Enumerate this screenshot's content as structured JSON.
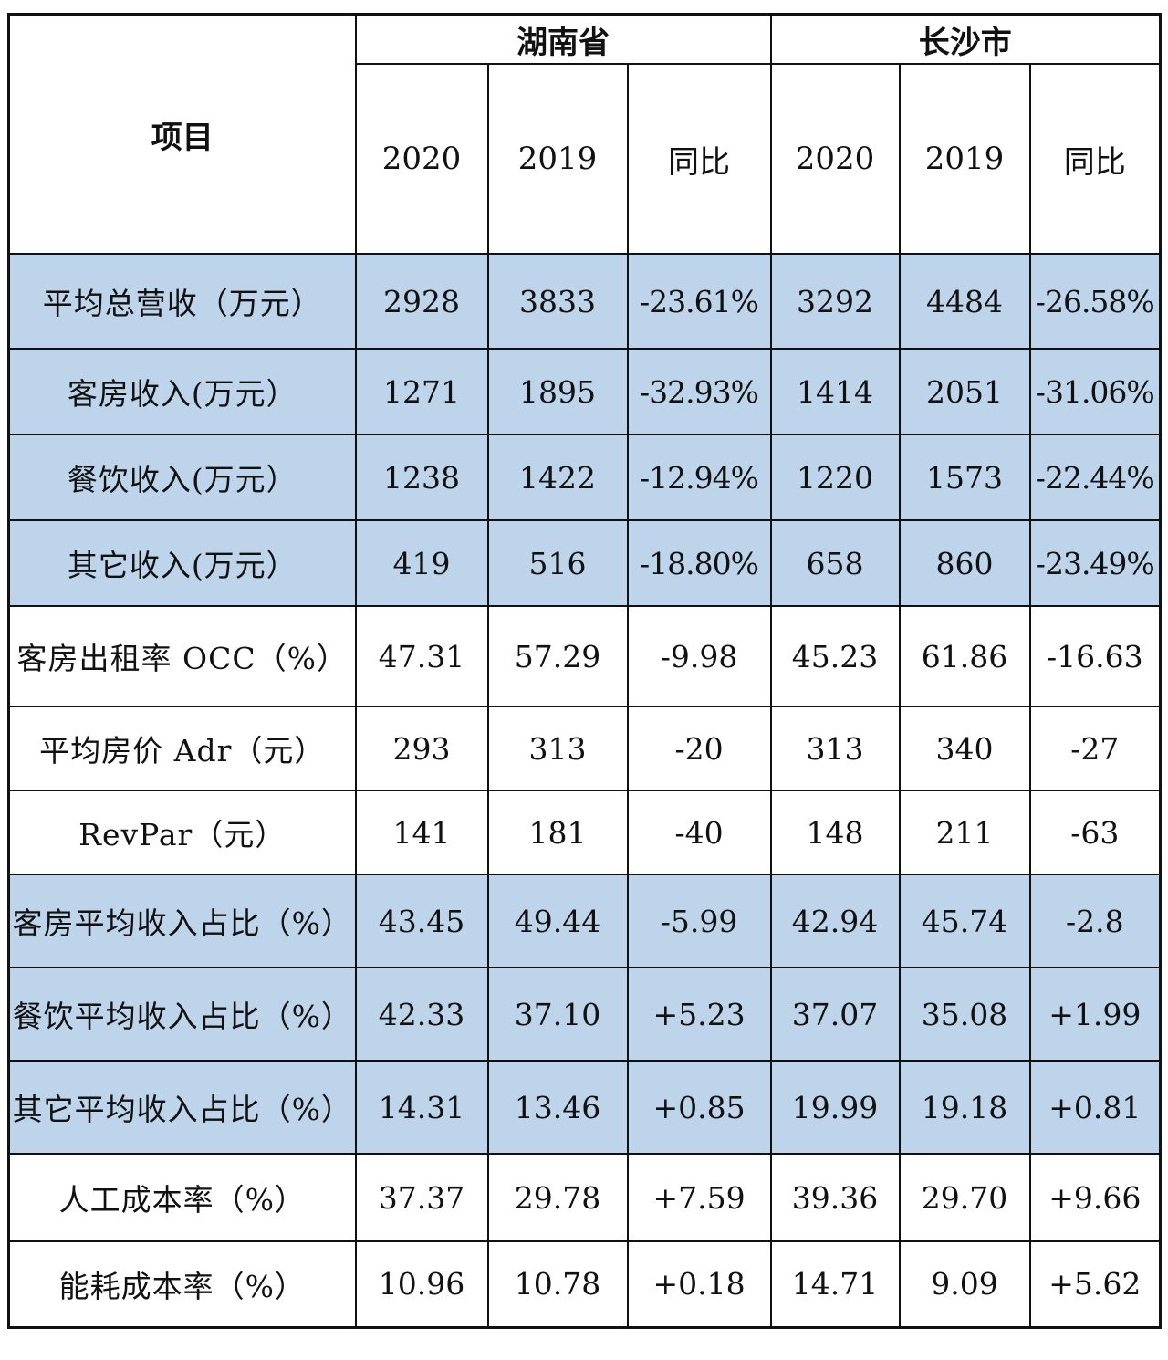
{
  "header": {
    "item_label": "项目",
    "groups": [
      "湖南省",
      "长沙市"
    ],
    "columns": [
      "2020",
      "2019",
      "同比",
      "2020",
      "2019",
      "同比"
    ]
  },
  "colors": {
    "highlight_row": "#bdd4ea",
    "border": "#111111"
  },
  "rows": [
    {
      "label": "平均总营收（万元）",
      "values": [
        "2928",
        "3833",
        "-23.61%",
        "3292",
        "4484",
        "-26.58%"
      ],
      "highlight": true
    },
    {
      "label": "客房收入(万元）",
      "values": [
        "1271",
        "1895",
        "-32.93%",
        "1414",
        "2051",
        "-31.06%"
      ],
      "highlight": true
    },
    {
      "label": "餐饮收入(万元）",
      "values": [
        "1238",
        "1422",
        "-12.94%",
        "1220",
        "1573",
        "-22.44%"
      ],
      "highlight": true
    },
    {
      "label": "其它收入(万元）",
      "values": [
        "419",
        "516",
        "-18.80%",
        "658",
        "860",
        "-23.49%"
      ],
      "highlight": true
    },
    {
      "label": "客房出租率 OCC（%）",
      "values": [
        "47.31",
        "57.29",
        "-9.98",
        "45.23",
        "61.86",
        "-16.63"
      ],
      "highlight": false
    },
    {
      "label": "平均房价 Adr（元）",
      "values": [
        "293",
        "313",
        "-20",
        "313",
        "340",
        "-27"
      ],
      "highlight": false
    },
    {
      "label": "RevPar（元）",
      "values": [
        "141",
        "181",
        "-40",
        "148",
        "211",
        "-63"
      ],
      "highlight": false
    },
    {
      "label": "客房平均收入占比（%）",
      "values": [
        "43.45",
        "49.44",
        "-5.99",
        "42.94",
        "45.74",
        "-2.8"
      ],
      "highlight": true
    },
    {
      "label": "餐饮平均收入占比（%）",
      "values": [
        "42.33",
        "37.10",
        "+5.23",
        "37.07",
        "35.08",
        "+1.99"
      ],
      "highlight": true
    },
    {
      "label": "其它平均收入占比（%）",
      "values": [
        "14.31",
        "13.46",
        "+0.85",
        "19.99",
        "19.18",
        "+0.81"
      ],
      "highlight": true
    },
    {
      "label": "人工成本率（%）",
      "values": [
        "37.37",
        "29.78",
        "+7.59",
        "39.36",
        "29.70",
        "+9.66"
      ],
      "highlight": false
    },
    {
      "label": "能耗成本率（%）",
      "values": [
        "10.96",
        "10.78",
        "+0.18",
        "14.71",
        "9.09",
        "+5.62"
      ],
      "highlight": false
    }
  ]
}
